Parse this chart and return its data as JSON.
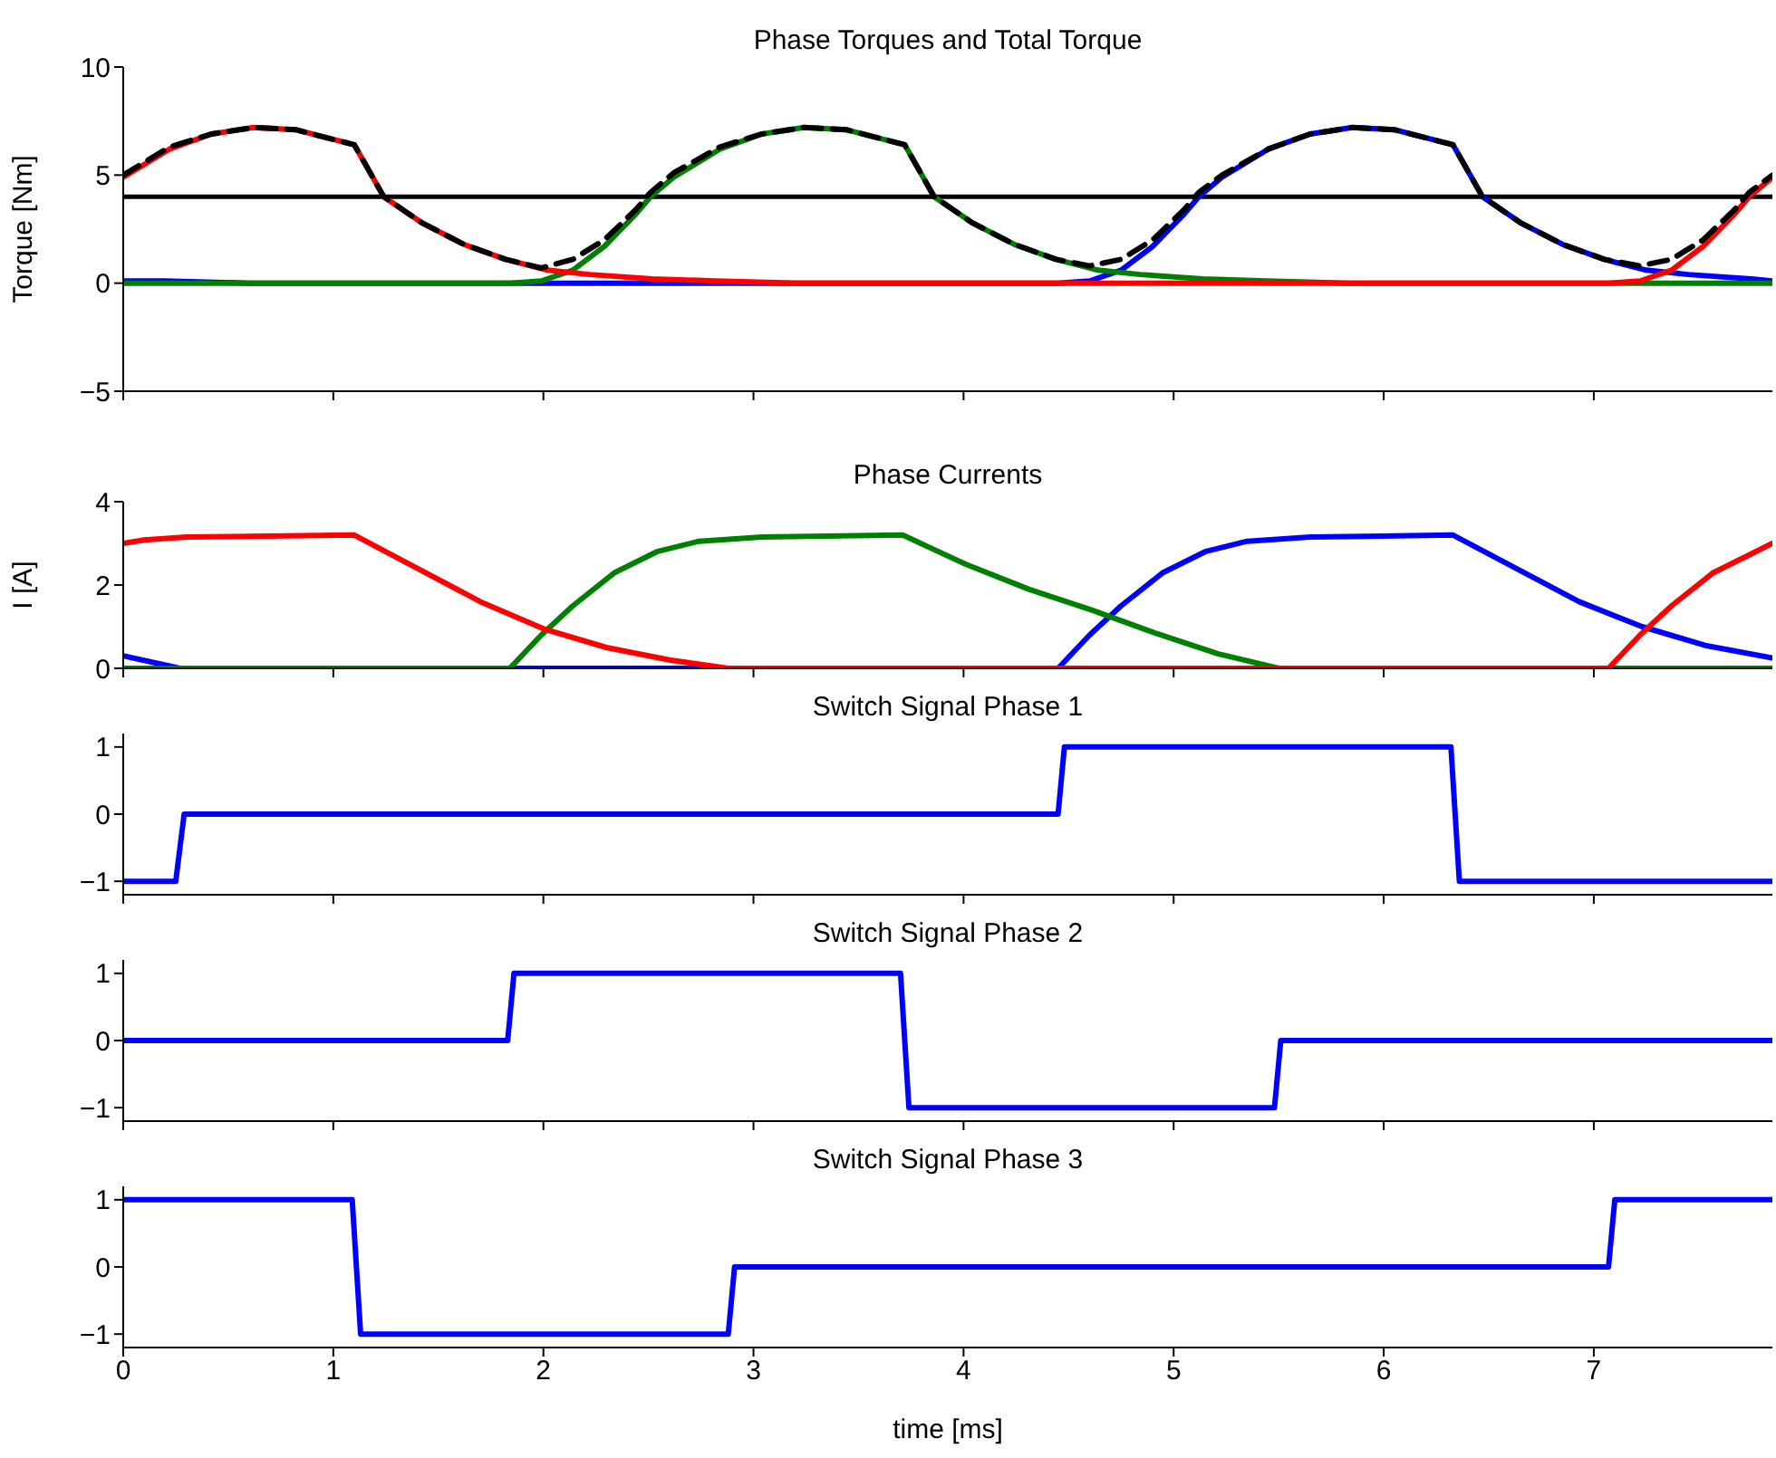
{
  "chart_data": [
    {
      "type": "line",
      "title": "Phase Torques and Total Torque",
      "ylabel": "Torque [Nm]",
      "xlim": [
        0,
        7.85
      ],
      "xticks": [
        0,
        1,
        2,
        3,
        4,
        5,
        6,
        7
      ],
      "ylim": [
        -5,
        10
      ],
      "yticks": [
        -5,
        0,
        5,
        10
      ],
      "tick_labels": "y",
      "ref_lines": [
        {
          "axis": "y",
          "value": 4,
          "color": "#000000"
        }
      ],
      "series": [
        {
          "color": "#0000ff",
          "x": [
            0,
            0.2,
            0.6,
            4.45,
            4.6,
            4.75,
            4.9,
            5.05,
            5.12,
            5.23,
            5.45,
            5.65,
            5.85,
            6.05,
            6.33,
            6.4,
            6.47,
            6.65,
            6.85,
            7.05,
            7.25,
            7.45,
            7.75,
            7.85
          ],
          "values": [
            0.1,
            0.1,
            0,
            0,
            0.1,
            0.6,
            1.7,
            3.2,
            4.0,
            4.9,
            6.2,
            6.9,
            7.2,
            7.1,
            6.4,
            5.2,
            4.0,
            2.8,
            1.8,
            1.1,
            0.6,
            0.4,
            0.2,
            0.1
          ]
        },
        {
          "color": "#008000",
          "x": [
            0,
            1.84,
            1.99,
            2.14,
            2.29,
            2.44,
            2.51,
            2.62,
            2.84,
            3.04,
            3.24,
            3.44,
            3.72,
            3.79,
            3.86,
            4.04,
            4.24,
            4.44,
            4.64,
            4.84,
            5.14,
            5.44,
            5.84,
            7.85
          ],
          "values": [
            0,
            0,
            0.1,
            0.6,
            1.7,
            3.2,
            4.0,
            4.9,
            6.2,
            6.9,
            7.2,
            7.1,
            6.4,
            5.2,
            4.0,
            2.8,
            1.8,
            1.1,
            0.6,
            0.4,
            0.2,
            0.1,
            0,
            0
          ]
        },
        {
          "color": "#ff0000",
          "x": [
            0,
            0.22,
            0.42,
            0.62,
            0.82,
            1.1,
            1.17,
            1.24,
            1.42,
            1.62,
            1.82,
            2.02,
            2.22,
            2.52,
            2.82,
            3.22,
            7.07,
            7.22,
            7.37,
            7.52,
            7.67,
            7.74,
            7.85
          ],
          "values": [
            4.9,
            6.2,
            6.9,
            7.2,
            7.1,
            6.4,
            5.2,
            4.0,
            2.8,
            1.8,
            1.1,
            0.6,
            0.4,
            0.2,
            0.1,
            0,
            0,
            0.1,
            0.6,
            1.7,
            3.2,
            4.0,
            4.9
          ]
        },
        {
          "color": "#000000",
          "line_style": "dashed",
          "x": [
            0,
            0.22,
            0.42,
            0.62,
            0.82,
            1.1,
            1.17,
            1.24,
            1.42,
            1.62,
            1.82,
            1.99,
            2.14,
            2.29,
            2.44,
            2.51,
            2.62,
            2.84,
            3.04,
            3.24,
            3.44,
            3.72,
            3.79,
            3.86,
            4.04,
            4.24,
            4.44,
            4.6,
            4.75,
            4.9,
            5.05,
            5.12,
            5.23,
            5.45,
            5.65,
            5.85,
            6.05,
            6.33,
            6.4,
            6.47,
            6.65,
            6.85,
            7.05,
            7.22,
            7.37,
            7.52,
            7.67,
            7.74,
            7.85
          ],
          "values": [
            5.0,
            6.3,
            6.9,
            7.2,
            7.1,
            6.4,
            5.2,
            4.0,
            2.8,
            1.8,
            1.1,
            0.7,
            1.1,
            2.0,
            3.4,
            4.2,
            5.1,
            6.3,
            6.9,
            7.2,
            7.1,
            6.4,
            5.2,
            4.0,
            2.8,
            1.8,
            1.1,
            0.8,
            1.1,
            2.0,
            3.4,
            4.2,
            5.0,
            6.2,
            6.9,
            7.2,
            7.1,
            6.4,
            5.2,
            4.0,
            2.8,
            1.8,
            1.1,
            0.8,
            1.1,
            2.0,
            3.4,
            4.2,
            5.0
          ]
        }
      ]
    },
    {
      "type": "line",
      "title": "Phase Currents",
      "ylabel": "I [A]",
      "xlim": [
        0,
        7.85
      ],
      "xticks": [
        0,
        1,
        2,
        3,
        4,
        5,
        6,
        7
      ],
      "ylim": [
        0,
        4
      ],
      "yticks": [
        0,
        2,
        4
      ],
      "tick_labels": "y",
      "series": [
        {
          "color": "#0000ff",
          "x": [
            0,
            0.27,
            4.45,
            4.6,
            4.75,
            4.95,
            5.15,
            5.35,
            5.65,
            6.33,
            6.63,
            6.93,
            7.23,
            7.53,
            7.85
          ],
          "values": [
            0.3,
            0,
            0,
            0.8,
            1.5,
            2.3,
            2.8,
            3.05,
            3.15,
            3.2,
            2.4,
            1.6,
            1.0,
            0.55,
            0.25
          ]
        },
        {
          "color": "#008000",
          "x": [
            0,
            1.84,
            1.99,
            2.14,
            2.34,
            2.54,
            2.74,
            3.04,
            3.71,
            4.01,
            4.31,
            4.61,
            4.91,
            5.21,
            5.5,
            7.85
          ],
          "values": [
            0,
            0,
            0.8,
            1.5,
            2.3,
            2.8,
            3.05,
            3.15,
            3.2,
            2.5,
            1.9,
            1.4,
            0.85,
            0.35,
            0,
            0
          ]
        },
        {
          "color": "#ff0000",
          "x": [
            0,
            0.1,
            0.3,
            1.1,
            1.4,
            1.7,
            2.0,
            2.3,
            2.6,
            2.88,
            7.07,
            7.22,
            7.37,
            7.57,
            7.77,
            7.85
          ],
          "values": [
            3.0,
            3.08,
            3.15,
            3.2,
            2.4,
            1.6,
            0.95,
            0.5,
            0.2,
            0,
            0,
            0.8,
            1.5,
            2.3,
            2.8,
            3.0
          ]
        }
      ]
    },
    {
      "type": "line",
      "title": "Switch Signal Phase 1",
      "xlim": [
        0,
        7.85
      ],
      "xticks": [
        0,
        1,
        2,
        3,
        4,
        5,
        6,
        7
      ],
      "ylim": [
        -1.2,
        1.2
      ],
      "yticks": [
        -1,
        0,
        1
      ],
      "tick_labels": "y",
      "series": [
        {
          "color": "#0000ff",
          "x": [
            0,
            0.25,
            0.29,
            4.45,
            4.48,
            6.32,
            6.36,
            7.85
          ],
          "values": [
            -1,
            -1,
            0,
            0,
            1,
            1,
            -1,
            -1
          ]
        }
      ]
    },
    {
      "type": "line",
      "title": "Switch Signal Phase 2",
      "xlim": [
        0,
        7.85
      ],
      "xticks": [
        0,
        1,
        2,
        3,
        4,
        5,
        6,
        7
      ],
      "ylim": [
        -1.2,
        1.2
      ],
      "yticks": [
        -1,
        0,
        1
      ],
      "tick_labels": "y",
      "series": [
        {
          "color": "#0000ff",
          "x": [
            0,
            1.83,
            1.86,
            3.7,
            3.74,
            5.48,
            5.51,
            7.85
          ],
          "values": [
            0,
            0,
            1,
            1,
            -1,
            -1,
            0,
            0
          ]
        }
      ]
    },
    {
      "type": "line",
      "title": "Switch Signal Phase 3",
      "xlabel": "time [ms]",
      "xlim": [
        0,
        7.85
      ],
      "xticks": [
        0,
        1,
        2,
        3,
        4,
        5,
        6,
        7
      ],
      "ylim": [
        -1.2,
        1.2
      ],
      "yticks": [
        -1,
        0,
        1
      ],
      "series": [
        {
          "color": "#0000ff",
          "x": [
            0,
            1.09,
            1.13,
            2.88,
            2.91,
            7.07,
            7.1,
            7.85
          ],
          "values": [
            1,
            1,
            -1,
            -1,
            0,
            0,
            1,
            1
          ]
        }
      ]
    }
  ]
}
